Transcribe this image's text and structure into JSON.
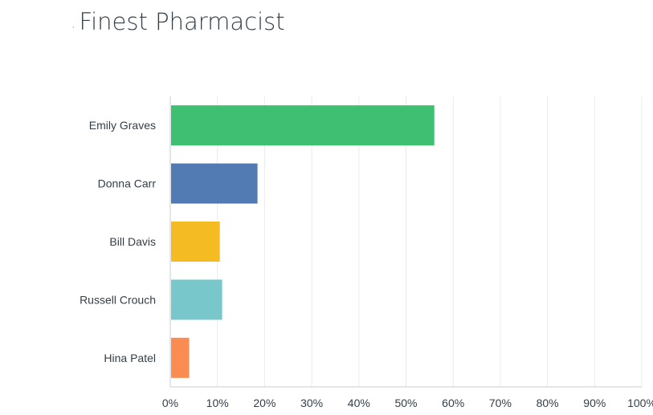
{
  "header": {
    "mark": ",",
    "title": "Finest Pharmacist"
  },
  "chart_data": {
    "type": "bar",
    "orientation": "horizontal",
    "title": "Finest Pharmacist",
    "categories": [
      "Emily Graves",
      "Donna Carr",
      "Bill Davis",
      "Russell Crouch",
      "Hina Patel"
    ],
    "values": [
      56,
      18.5,
      10.5,
      11,
      4
    ],
    "colors": [
      "#3fbf72",
      "#537bb3",
      "#f5bb22",
      "#78c7ca",
      "#fa8c52"
    ],
    "xlim": [
      0,
      100
    ],
    "xticks": [
      "0%",
      "10%",
      "20%",
      "30%",
      "40%",
      "50%",
      "60%",
      "70%",
      "80%",
      "90%",
      "100%"
    ],
    "grid": true,
    "legend": "none"
  }
}
